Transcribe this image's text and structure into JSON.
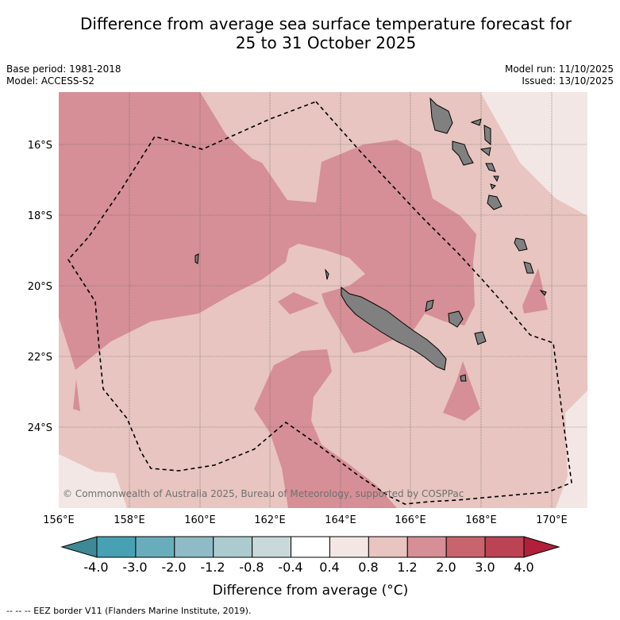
{
  "title": {
    "line1": "Difference from average sea surface temperature forecast for",
    "line2": "25 to 31 October 2025"
  },
  "info": {
    "base_period": "Base period: 1981-2018",
    "model": "Model: ACCESS-S2",
    "model_run": "Model run: 11/10/2025",
    "issued": "Issued: 13/10/2025"
  },
  "map": {
    "lat_labels": [
      "16°S",
      "18°S",
      "20°S",
      "22°S",
      "24°S"
    ],
    "lon_labels": [
      "156°E",
      "158°E",
      "160°E",
      "162°E",
      "164°E",
      "166°E",
      "168°E",
      "170°E"
    ],
    "copyright": "© Commonwealth of Australia 2025, Bureau of Meteorology, supported by COSPPac"
  },
  "colorbar": {
    "tick_labels": [
      "-4.0",
      "-3.0",
      "-2.0",
      "-1.2",
      "-0.8",
      "-0.4",
      "0.4",
      "0.8",
      "1.2",
      "2.0",
      "3.0",
      "4.0"
    ],
    "colors": [
      "#47a1b3",
      "#69adbc",
      "#8fbbc6",
      "#abcbcf",
      "#c9d9da",
      "#ffffff",
      "#f3e7e5",
      "#e8c5c0",
      "#d68f96",
      "#c9636d",
      "#bb4354"
    ],
    "extend_low_color": "#3e8995",
    "extend_high_color": "#b0203a",
    "label": "Difference from average (°C)"
  },
  "footer": {
    "legend": "--  --  -- EEZ border V11 (Flanders Marine Institute, 2019)."
  }
}
